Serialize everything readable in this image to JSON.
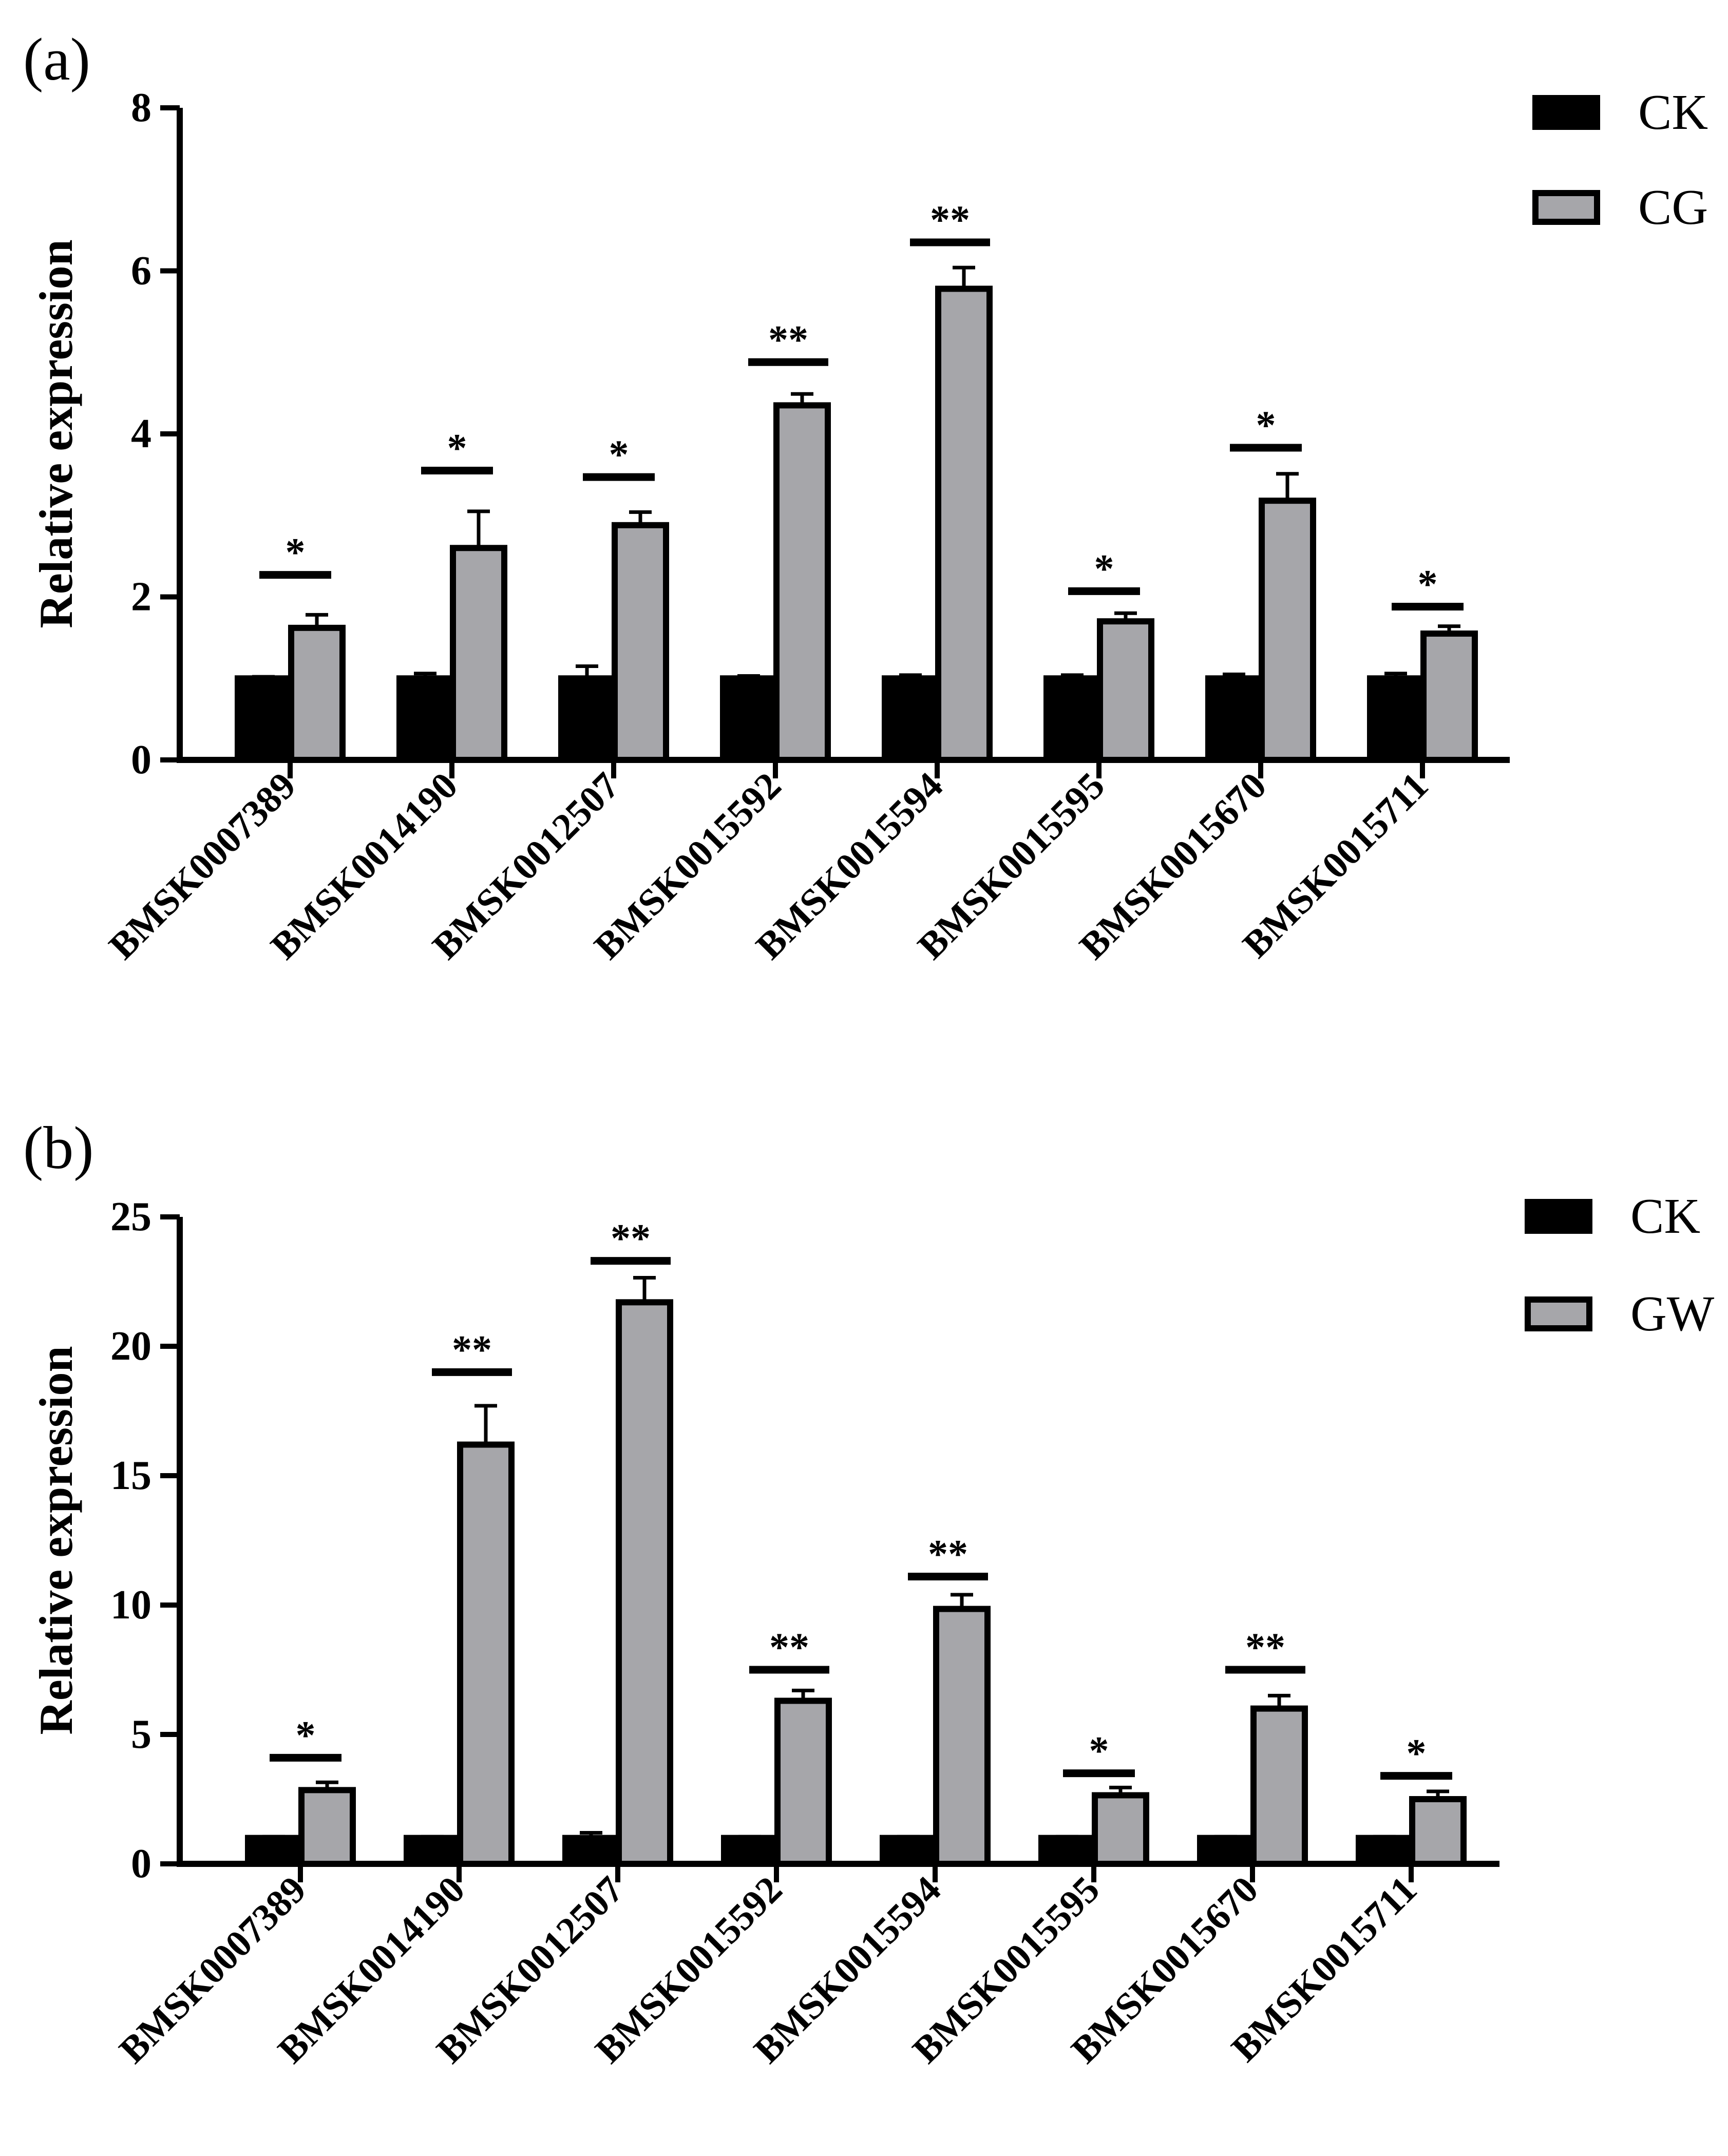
{
  "colors": {
    "ck": "#000000",
    "treatment": "#a6a6aa",
    "axis": "#000000"
  },
  "chart_data": [
    {
      "panel_label": "(a)",
      "type": "bar",
      "ylabel": "Relative expression",
      "xlabel": "",
      "ylim": [
        0,
        8
      ],
      "yticks": [
        0,
        2,
        4,
        6,
        8
      ],
      "legend_position": "top-right",
      "categories": [
        "BMSK0007389",
        "BMSK0014190",
        "BMSK0012507",
        "BMSK0015592",
        "BMSK0015594",
        "BMSK0015595",
        "BMSK0015670",
        "BMSK0015711"
      ],
      "series": [
        {
          "name": "CK",
          "values": [
            1.0,
            1.0,
            1.0,
            1.0,
            1.0,
            1.0,
            1.0,
            1.0
          ],
          "errors": [
            0.02,
            0.06,
            0.15,
            0.03,
            0.04,
            0.04,
            0.05,
            0.06
          ]
        },
        {
          "name": "CG",
          "values": [
            1.62,
            2.6,
            2.88,
            4.35,
            5.78,
            1.7,
            3.18,
            1.55
          ],
          "errors": [
            0.16,
            0.45,
            0.16,
            0.14,
            0.26,
            0.1,
            0.33,
            0.09
          ]
        }
      ],
      "significance": [
        "*",
        "*",
        "*",
        "**",
        "**",
        "*",
        "*",
        "*"
      ],
      "significance_level": [
        2.27,
        3.55,
        3.47,
        4.88,
        6.35,
        2.07,
        3.83,
        1.88
      ]
    },
    {
      "panel_label": "(b)",
      "type": "bar",
      "ylabel": "Relative expression",
      "xlabel": "",
      "ylim": [
        0,
        25
      ],
      "yticks": [
        0,
        5,
        10,
        15,
        20,
        25
      ],
      "legend_position": "top-right",
      "categories": [
        "BMSK0007389",
        "BMSK0014190",
        "BMSK0012507",
        "BMSK0015592",
        "BMSK0015594",
        "BMSK0015595",
        "BMSK0015670",
        "BMSK0015711"
      ],
      "series": [
        {
          "name": "CK",
          "values": [
            1.0,
            1.0,
            1.0,
            1.0,
            1.0,
            1.0,
            1.0,
            1.0
          ],
          "errors": [
            0.05,
            0.05,
            0.2,
            0.05,
            0.05,
            0.05,
            0.05,
            0.05
          ]
        },
        {
          "name": "GW",
          "values": [
            2.85,
            16.2,
            21.7,
            6.3,
            9.85,
            2.65,
            6.0,
            2.5
          ],
          "errors": [
            0.3,
            1.5,
            0.95,
            0.4,
            0.55,
            0.3,
            0.5,
            0.3
          ]
        }
      ],
      "significance": [
        "*",
        "**",
        "**",
        "**",
        "**",
        "*",
        "**",
        "*"
      ],
      "significance_level": [
        4.1,
        19.0,
        23.3,
        7.5,
        11.1,
        3.5,
        7.5,
        3.4
      ]
    }
  ]
}
